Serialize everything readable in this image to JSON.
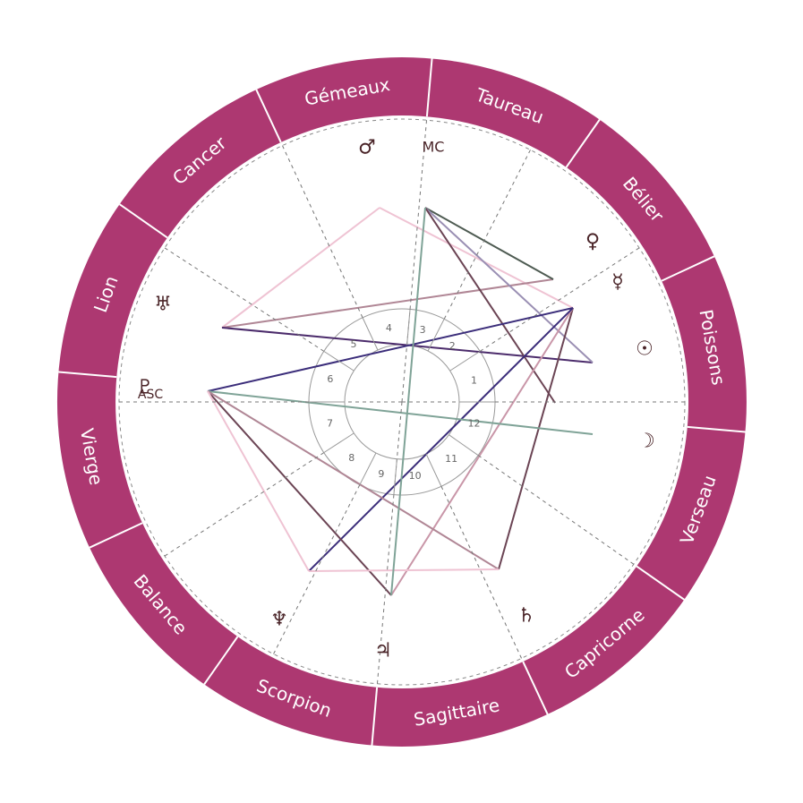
{
  "signs": [
    "Taureau",
    "Gémeaux",
    "Cancer",
    "Lion",
    "Vierge",
    "Balance",
    "Scorpion",
    "Sagittaire",
    "Capricorne",
    "Verseau",
    "Poissons",
    "Bélier"
  ],
  "planets": [
    {
      "symbol": "♂"
    },
    {
      "symbol": "♀"
    },
    {
      "symbol": "☿"
    },
    {
      "symbol": "☉"
    },
    {
      "symbol": "☽"
    },
    {
      "symbol": "♄"
    },
    {
      "symbol": "♃"
    },
    {
      "symbol": "♆"
    },
    {
      "symbol": "♅"
    },
    {
      "symbol": "♇"
    }
  ],
  "angles": {
    "mc": "MC",
    "asc": "ASC"
  },
  "houses": [
    "1",
    "2",
    "3",
    "4",
    "5",
    "6",
    "7",
    "8",
    "9",
    "10",
    "11",
    "12"
  ]
}
